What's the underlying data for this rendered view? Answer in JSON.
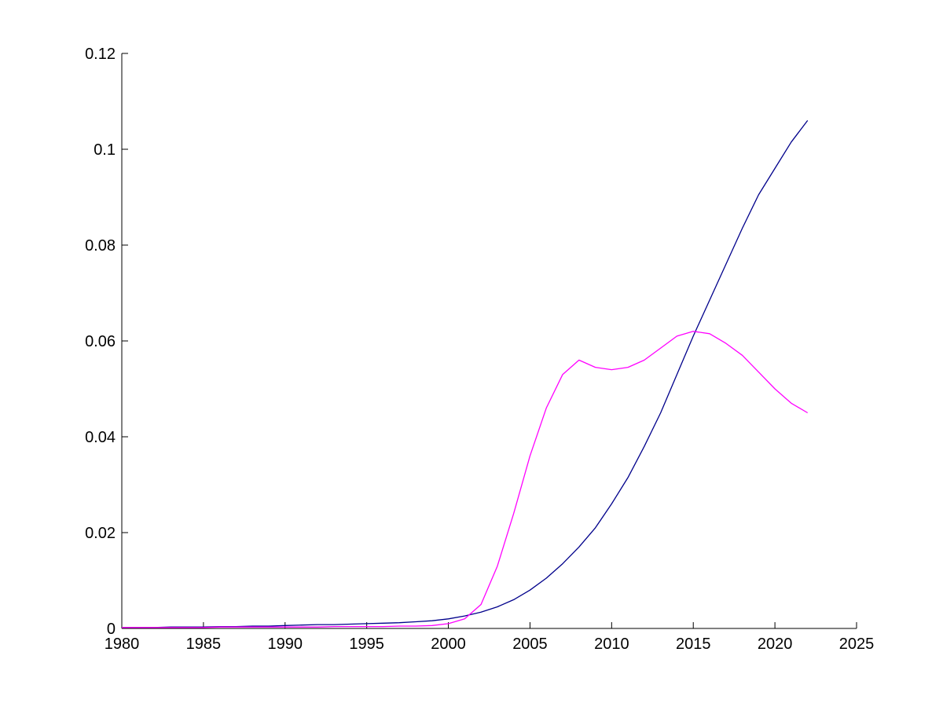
{
  "figure": {
    "background": "#ffffff",
    "axis_color": "#000000"
  },
  "chart_data": {
    "type": "line",
    "title": "",
    "xlabel": "",
    "ylabel": "",
    "grid": false,
    "legend": null,
    "xlim": [
      1980,
      2025
    ],
    "ylim": [
      0,
      0.12
    ],
    "xticks": [
      1980,
      1985,
      1990,
      1995,
      2000,
      2005,
      2010,
      2015,
      2020,
      2025
    ],
    "yticks": [
      0,
      0.02,
      0.04,
      0.06,
      0.08,
      0.1,
      0.12
    ],
    "ytick_labels": [
      "0",
      "0.02",
      "0.04",
      "0.06",
      "0.08",
      "0.1",
      "0.12"
    ],
    "x": [
      1980,
      1981,
      1982,
      1983,
      1984,
      1985,
      1986,
      1987,
      1988,
      1989,
      1990,
      1991,
      1992,
      1993,
      1994,
      1995,
      1996,
      1997,
      1998,
      1999,
      2000,
      2001,
      2002,
      2003,
      2004,
      2005,
      2006,
      2007,
      2008,
      2009,
      2010,
      2011,
      2012,
      2013,
      2014,
      2015,
      2016,
      2017,
      2018,
      2019,
      2020,
      2021,
      2022
    ],
    "series": [
      {
        "name": "series-dark-blue",
        "color": "#00008B",
        "values": [
          0.0002,
          0.0002,
          0.0002,
          0.0003,
          0.0003,
          0.0003,
          0.0004,
          0.0004,
          0.0005,
          0.0005,
          0.0006,
          0.0007,
          0.0008,
          0.0008,
          0.0009,
          0.001,
          0.0011,
          0.0012,
          0.0014,
          0.0016,
          0.002,
          0.0026,
          0.0034,
          0.0045,
          0.006,
          0.008,
          0.0105,
          0.0135,
          0.017,
          0.021,
          0.026,
          0.0315,
          0.038,
          0.045,
          0.053,
          0.061,
          0.0685,
          0.076,
          0.0835,
          0.0905,
          0.096,
          0.1015,
          0.106
        ]
      },
      {
        "name": "series-magenta",
        "color": "#FF00FF",
        "values": [
          0.0002,
          0.0002,
          0.0002,
          0.0002,
          0.0002,
          0.0002,
          0.0003,
          0.0003,
          0.0003,
          0.0003,
          0.0003,
          0.0003,
          0.0003,
          0.0004,
          0.0004,
          0.0004,
          0.0004,
          0.0005,
          0.0005,
          0.0006,
          0.001,
          0.002,
          0.005,
          0.013,
          0.024,
          0.036,
          0.046,
          0.053,
          0.056,
          0.0545,
          0.054,
          0.0545,
          0.056,
          0.0585,
          0.061,
          0.062,
          0.0615,
          0.0595,
          0.057,
          0.0535,
          0.05,
          0.047,
          0.045
        ]
      }
    ]
  }
}
